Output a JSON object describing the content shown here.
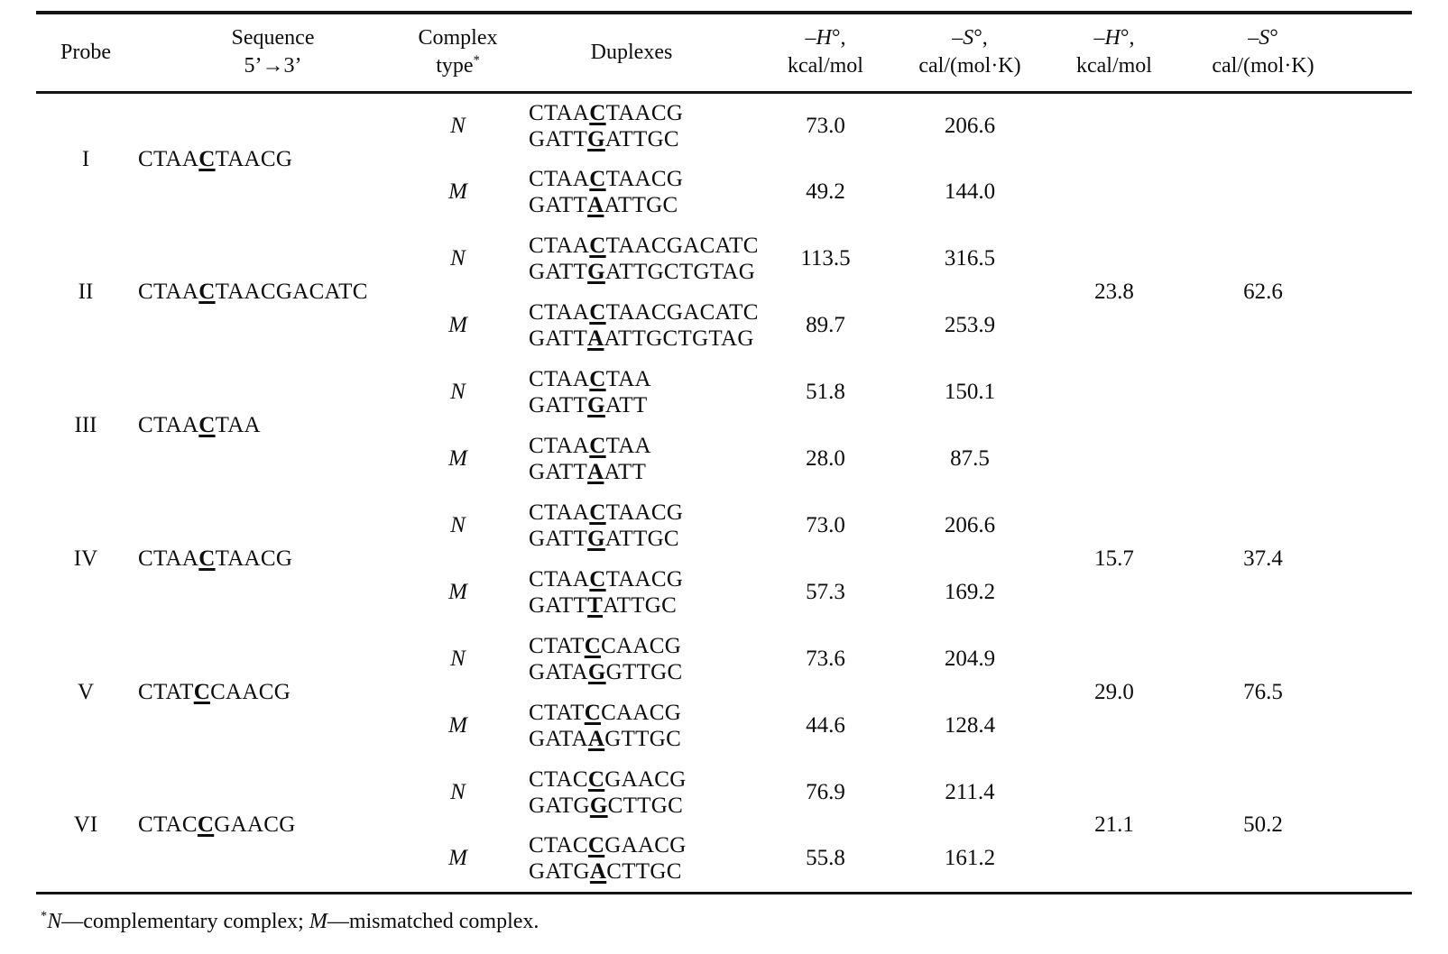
{
  "page": {
    "background": "#ffffff",
    "text_color": "#0d0d0d",
    "rule_color": "#141414"
  },
  "table": {
    "columns": [
      {
        "id": "probe",
        "line1": "Probe",
        "line2": ""
      },
      {
        "id": "seq",
        "line1": "Sequence",
        "line2": "5’→3’"
      },
      {
        "id": "ctype",
        "line1": "Complex",
        "line2": "type^(*)"
      },
      {
        "id": "duplex",
        "line1": "Duplexes",
        "line2": ""
      },
      {
        "id": "dh1",
        "line1": "–{H}°,",
        "line2": "kcal/mol"
      },
      {
        "id": "ds1",
        "line1": "–{S}°,",
        "line2": "cal/(mol·K)"
      },
      {
        "id": "dh2",
        "line1": "–{H}°,",
        "line2": "kcal/mol"
      },
      {
        "id": "ds2",
        "line1": "–{S}°",
        "line2": "cal/(mol·K)"
      }
    ],
    "groups": [
      {
        "probe": "I",
        "sequence": "CTAA[C]TAACG",
        "delta_dH": "",
        "delta_dS": "",
        "rows": [
          {
            "complex_type": "N",
            "duplex": [
              "CTAA[C]TAACG",
              "GATT[G]ATTGC"
            ],
            "dH": "73.0",
            "dS": "206.6"
          },
          {
            "complex_type": "M",
            "duplex": [
              "CTAA[C]TAACG",
              "GATT[A]ATTGC"
            ],
            "dH": "49.2",
            "dS": "144.0"
          }
        ]
      },
      {
        "probe": "II",
        "sequence": "CTAA[C]TAACGACATC",
        "delta_dH": "23.8",
        "delta_dS": "62.6",
        "rows": [
          {
            "complex_type": "N",
            "duplex": [
              "CTAA[C]TAACGACATC",
              "GATT[G]ATTGCTGTAG"
            ],
            "dH": "113.5",
            "dS": "316.5"
          },
          {
            "complex_type": "M",
            "duplex": [
              "CTAA[C]TAACGACATC",
              "GATT[A]ATTGCTGTAG"
            ],
            "dH": "89.7",
            "dS": "253.9"
          }
        ]
      },
      {
        "probe": "III",
        "sequence": "CTAA[C]TAA",
        "delta_dH": "",
        "delta_dS": "",
        "rows": [
          {
            "complex_type": "N",
            "duplex": [
              "CTAA[C]TAA",
              "GATT[G]ATT"
            ],
            "dH": "51.8",
            "dS": "150.1"
          },
          {
            "complex_type": "M",
            "duplex": [
              "CTAA[C]TAA",
              "GATT[A]ATT"
            ],
            "dH": "28.0",
            "dS": "87.5"
          }
        ]
      },
      {
        "probe": "IV",
        "sequence": "CTAA[C]TAACG",
        "delta_dH": "15.7",
        "delta_dS": "37.4",
        "rows": [
          {
            "complex_type": "N",
            "duplex": [
              "CTAA[C]TAACG",
              "GATT[G]ATTGC"
            ],
            "dH": "73.0",
            "dS": "206.6"
          },
          {
            "complex_type": "M",
            "duplex": [
              "CTAA[C]TAACG",
              "GATT[T]ATTGC"
            ],
            "dH": "57.3",
            "dS": "169.2"
          }
        ]
      },
      {
        "probe": "V",
        "sequence": "CTAT[C]CAACG",
        "delta_dH": "29.0",
        "delta_dS": "76.5",
        "rows": [
          {
            "complex_type": "N",
            "duplex": [
              "CTAT[C]CAACG",
              "GATA[G]GTTGC"
            ],
            "dH": "73.6",
            "dS": "204.9"
          },
          {
            "complex_type": "M",
            "duplex": [
              "CTAT[C]CAACG",
              "GATA[A]GTTGC"
            ],
            "dH": "44.6",
            "dS": "128.4"
          }
        ]
      },
      {
        "probe": "VI",
        "sequence": "CTAC[C]GAACG",
        "delta_dH": "21.1",
        "delta_dS": "50.2",
        "rows": [
          {
            "complex_type": "N",
            "duplex": [
              "CTAC[C]GAACG",
              "GATG[G]CTTGC"
            ],
            "dH": "76.9",
            "dS": "211.4"
          },
          {
            "complex_type": "M",
            "duplex": [
              "CTAC[C]GAACG",
              "GATG[A]CTTGC"
            ],
            "dH": "55.8",
            "dS": "161.2"
          }
        ]
      }
    ],
    "footnote": "^(*){N}—complementary complex; {M}—mismatched complex."
  }
}
